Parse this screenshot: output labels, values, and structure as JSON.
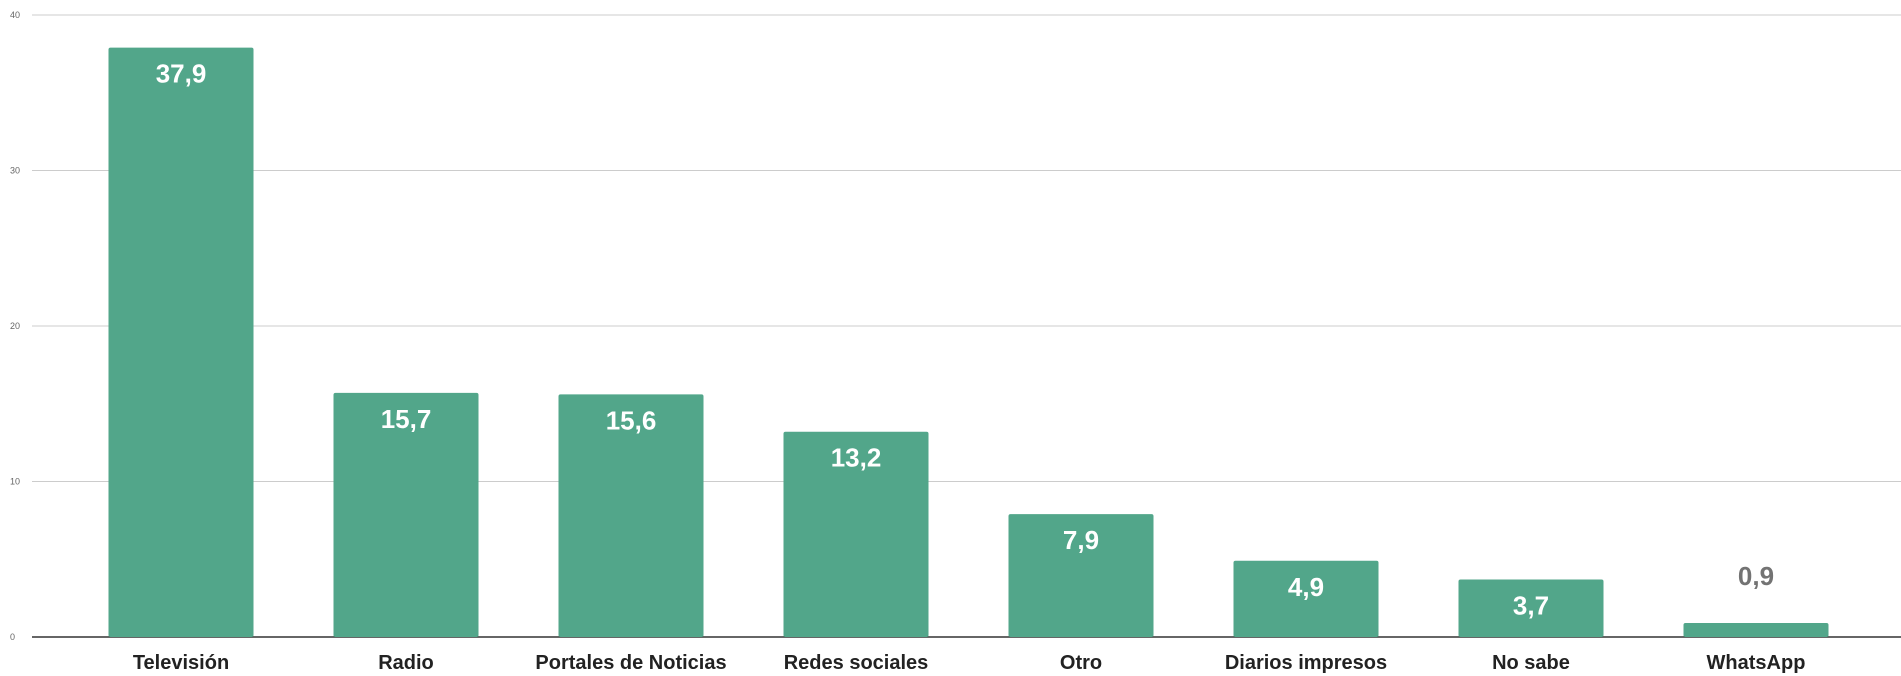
{
  "chart_data": {
    "type": "bar",
    "categories": [
      "Televisión",
      "Radio",
      "Portales de Noticias",
      "Redes sociales",
      "Otro",
      "Diarios impresos",
      "No sabe",
      "WhatsApp"
    ],
    "values": [
      37.9,
      15.7,
      15.6,
      13.2,
      7.9,
      4.9,
      3.7,
      0.9
    ],
    "value_labels": [
      "37,9",
      "15,7",
      "15,6",
      "13,2",
      "7,9",
      "4,9",
      "3,7",
      "0,9"
    ],
    "ylim": [
      0,
      40
    ],
    "yticks": [
      0,
      10,
      20,
      30,
      40
    ],
    "ytick_labels": [
      "0",
      "10",
      "20",
      "30",
      "40"
    ],
    "grid": true,
    "title": "",
    "xlabel": "",
    "ylabel": "",
    "colors": {
      "bar": "#52a68a",
      "grid": "#cccccc",
      "axis": "#333333",
      "label_inside": "#ffffff",
      "label_outside": "#737373"
    }
  }
}
